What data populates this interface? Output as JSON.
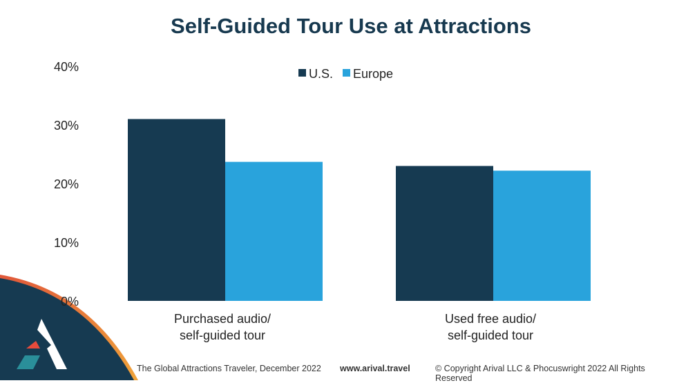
{
  "chart_data": {
    "type": "bar",
    "title": "Self-Guided Tour Use at Attractions",
    "categories": [
      [
        "Purchased audio/",
        "self-guided tour"
      ],
      [
        "Used free audio/",
        "self-guided tour"
      ]
    ],
    "series": [
      {
        "name": "U.S.",
        "values": [
          31,
          23
        ],
        "color": "#163a51"
      },
      {
        "name": "Europe",
        "values": [
          23.7,
          22.2
        ],
        "color": "#29a3dc"
      }
    ],
    "ylim": [
      0,
      40
    ],
    "yticks": [
      "0%",
      "10%",
      "20%",
      "30%",
      "40%"
    ],
    "ytick_values": [
      0,
      10,
      20,
      30,
      40
    ],
    "grid": false,
    "legend_position": "top-center"
  },
  "footer": {
    "source": "The Global Attractions Traveler, December 2022",
    "url": "www.arival.travel",
    "copyright": "© Copyright Arival LLC & Phocuswright 2022 All Rights Reserved"
  },
  "logo": {
    "name": "arival-logo"
  }
}
